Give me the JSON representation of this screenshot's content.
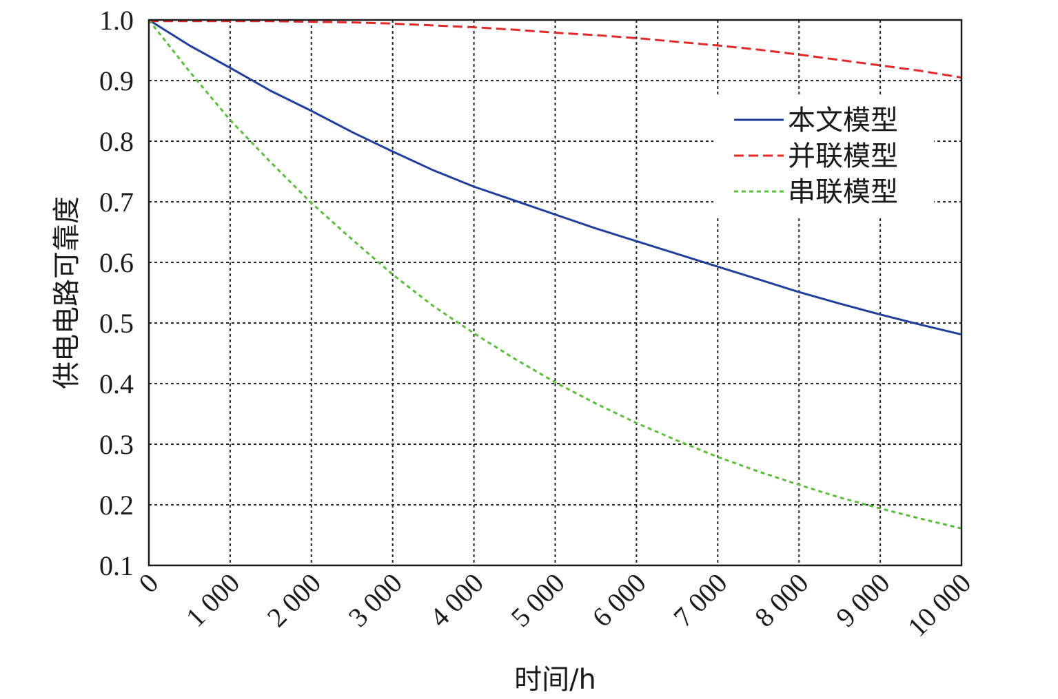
{
  "chart_data": {
    "type": "line",
    "title": "",
    "xlabel": "时间/h",
    "ylabel": "供电电路可靠度",
    "xlim": [
      0,
      10000
    ],
    "ylim": [
      0.1,
      1.0
    ],
    "x_ticks": [
      0,
      1000,
      2000,
      3000,
      4000,
      5000,
      6000,
      7000,
      8000,
      9000,
      10000
    ],
    "x_tick_labels": [
      "0",
      "1 000",
      "2 000",
      "3 000",
      "4 000",
      "5 000",
      "6 000",
      "7 000",
      "8 000",
      "9 000",
      "10 000"
    ],
    "y_ticks": [
      0.1,
      0.2,
      0.3,
      0.4,
      0.5,
      0.6,
      0.7,
      0.8,
      0.9,
      1.0
    ],
    "y_tick_labels": [
      "0.1",
      "0.2",
      "0.3",
      "0.4",
      "0.5",
      "0.6",
      "0.7",
      "0.8",
      "0.9",
      "1.0"
    ],
    "grid": true,
    "legend_position": "top-right",
    "x": [
      0,
      500,
      1000,
      1500,
      2000,
      2500,
      3000,
      3500,
      4000,
      4500,
      5000,
      5500,
      6000,
      6500,
      7000,
      7500,
      8000,
      8500,
      9000,
      9500,
      10000
    ],
    "series": [
      {
        "name": "本文模型",
        "color": "#1f3f9a",
        "dash": "solid",
        "values": [
          1.0,
          0.958,
          0.921,
          0.883,
          0.85,
          0.815,
          0.783,
          0.752,
          0.725,
          0.702,
          0.679,
          0.656,
          0.635,
          0.614,
          0.593,
          0.572,
          0.551,
          0.532,
          0.514,
          0.497,
          0.481
        ]
      },
      {
        "name": "并联模型",
        "color": "#e02a2a",
        "dash": "long",
        "values": [
          0.998,
          0.998,
          0.998,
          0.998,
          0.997,
          0.996,
          0.994,
          0.991,
          0.988,
          0.984,
          0.979,
          0.975,
          0.97,
          0.964,
          0.958,
          0.951,
          0.943,
          0.934,
          0.925,
          0.916,
          0.905
        ]
      },
      {
        "name": "串联模型",
        "color": "#5cbd3c",
        "dash": "short",
        "values": [
          1.0,
          0.915,
          0.835,
          0.765,
          0.698,
          0.638,
          0.58,
          0.528,
          0.483,
          0.441,
          0.402,
          0.367,
          0.335,
          0.306,
          0.279,
          0.255,
          0.233,
          0.212,
          0.194,
          0.177,
          0.161
        ]
      }
    ]
  }
}
